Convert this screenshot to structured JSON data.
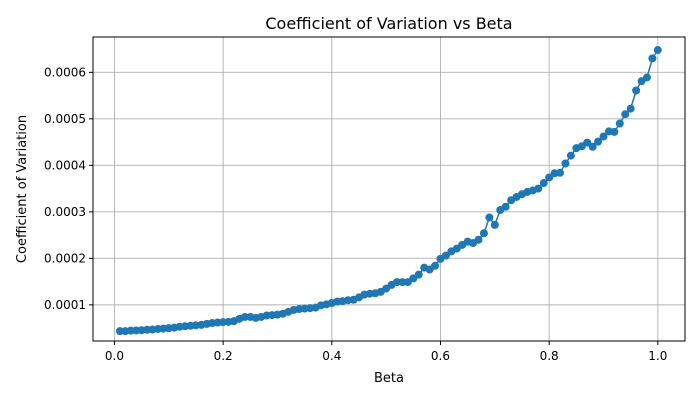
{
  "chart_data": {
    "type": "line",
    "title": "Coefficient of Variation vs Beta",
    "xlabel": "Beta",
    "ylabel": "Coefficient of Variation",
    "xlim": [
      -0.0395,
      1.05
    ],
    "ylim": [
      2.23e-05,
      0.000676
    ],
    "xticks": [
      0.0,
      0.2,
      0.4,
      0.6,
      0.8,
      1.0
    ],
    "xtick_labels": [
      "0.0",
      "0.2",
      "0.4",
      "0.6",
      "0.8",
      "1.0"
    ],
    "yticks": [
      0.0001,
      0.0002,
      0.0003,
      0.0004,
      0.0005,
      0.0006
    ],
    "ytick_labels": [
      "0.0001",
      "0.0002",
      "0.0003",
      "0.0004",
      "0.0005",
      "0.0006"
    ],
    "grid": true,
    "legend": "none",
    "colors": {
      "series": "#1f77b4",
      "grid": "#b0b0b0",
      "axes": "#000000"
    },
    "series": [
      {
        "marker": "circle",
        "x": [
          0.01,
          0.02,
          0.03,
          0.04,
          0.05,
          0.06,
          0.07,
          0.08,
          0.09,
          0.1,
          0.11,
          0.12,
          0.13,
          0.14,
          0.15,
          0.16,
          0.17,
          0.18,
          0.19,
          0.2,
          0.21,
          0.22,
          0.23,
          0.24,
          0.25,
          0.26,
          0.27,
          0.28,
          0.29,
          0.3,
          0.31,
          0.32,
          0.33,
          0.34,
          0.35,
          0.36,
          0.37,
          0.38,
          0.39,
          0.4,
          0.41,
          0.42,
          0.43,
          0.44,
          0.45,
          0.46,
          0.47,
          0.48,
          0.49,
          0.5,
          0.51,
          0.52,
          0.53,
          0.54,
          0.55,
          0.56,
          0.57,
          0.58,
          0.59,
          0.6,
          0.61,
          0.62,
          0.63,
          0.64,
          0.65,
          0.66,
          0.67,
          0.68,
          0.69,
          0.7,
          0.71,
          0.72,
          0.73,
          0.74,
          0.75,
          0.76,
          0.77,
          0.78,
          0.79,
          0.8,
          0.81,
          0.82,
          0.83,
          0.84,
          0.85,
          0.86,
          0.87,
          0.88,
          0.89,
          0.9,
          0.91,
          0.92,
          0.93,
          0.94,
          0.95,
          0.96,
          0.97,
          0.98,
          0.99,
          1.0
        ],
        "y": [
          4.35e-05,
          4.35e-05,
          4.45e-05,
          4.5e-05,
          4.55e-05,
          4.65e-05,
          4.7e-05,
          4.8e-05,
          4.9e-05,
          5e-05,
          5.1e-05,
          5.3e-05,
          5.4e-05,
          5.5e-05,
          5.6e-05,
          5.7e-05,
          5.9e-05,
          6.1e-05,
          6.2e-05,
          6.3e-05,
          6.35e-05,
          6.5e-05,
          7e-05,
          7.4e-05,
          7.4e-05,
          7.2e-05,
          7.4e-05,
          7.7e-05,
          7.8e-05,
          7.9e-05,
          8.1e-05,
          8.5e-05,
          8.9e-05,
          9.1e-05,
          9.2e-05,
          9.3e-05,
          9.4e-05,
          9.9e-05,
          0.000101,
          0.000104,
          0.000107,
          0.000108,
          0.00011,
          0.000111,
          0.000116,
          0.000122,
          0.000124,
          0.000125,
          0.000128,
          0.000135,
          0.000143,
          0.000149,
          0.000149,
          0.000149,
          0.000157,
          0.000165,
          0.00018,
          0.000176,
          0.000184,
          0.000199,
          0.000206,
          0.000215,
          0.000221,
          0.000229,
          0.000236,
          0.000233,
          0.00024,
          0.000254,
          0.000288,
          0.000272,
          0.000304,
          0.000311,
          0.000325,
          0.000332,
          0.000338,
          0.000343,
          0.000346,
          0.00035,
          0.000362,
          0.000374,
          0.000383,
          0.000384,
          0.000404,
          0.000421,
          0.000437,
          0.000441,
          0.000449,
          0.00044,
          0.000451,
          0.000462,
          0.000473,
          0.000472,
          0.00049,
          0.00051,
          0.000522,
          0.000561,
          0.000581,
          0.000589,
          0.00063,
          0.000648
        ]
      }
    ]
  }
}
